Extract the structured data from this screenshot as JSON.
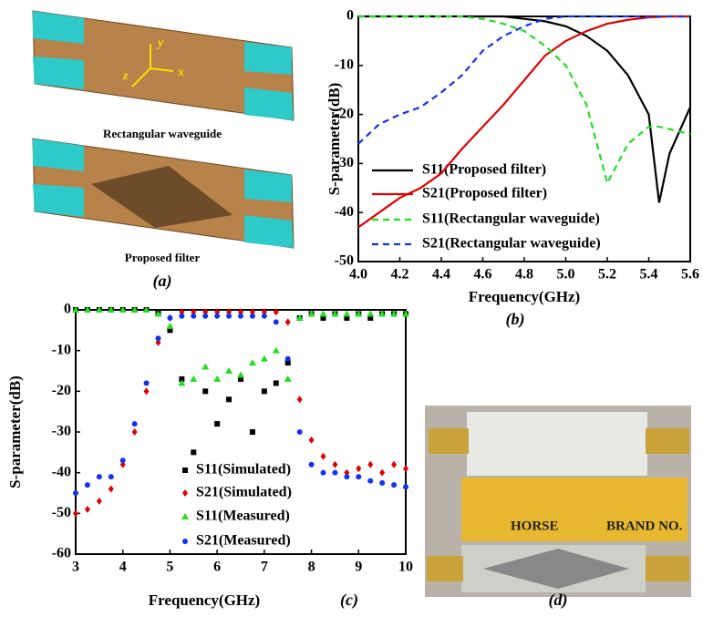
{
  "chart_data": [
    {
      "type": "line",
      "panel_label": "(b)",
      "x_label": "Frequency(GHz)",
      "y_label": "S-parameter(dB)",
      "x": [
        4.0,
        4.1,
        4.2,
        4.3,
        4.4,
        4.5,
        4.6,
        4.7,
        4.8,
        4.9,
        5.0,
        5.1,
        5.2,
        5.3,
        5.4,
        5.45,
        5.5,
        5.6
      ],
      "series": [
        {
          "name": "S11(Proposed filter)",
          "color": "#000000",
          "style": "solid",
          "values": [
            0,
            0,
            0,
            0,
            0,
            0,
            0,
            0,
            -0.5,
            -1,
            -2,
            -4,
            -7,
            -12,
            -20,
            -38,
            -28,
            -18.5
          ]
        },
        {
          "name": "S21(Proposed filter)",
          "color": "#e00000",
          "style": "solid",
          "values": [
            -43,
            -40,
            -37,
            -35,
            -32,
            -27,
            -22.5,
            -18,
            -13,
            -8,
            -5,
            -3,
            -1.5,
            -0.7,
            -0.2,
            -0.1,
            0,
            0
          ]
        },
        {
          "name": "S11(Rectangular waveguide)",
          "color": "#22dd22",
          "style": "dashed",
          "values": [
            0,
            0,
            0,
            0,
            0,
            0,
            -0.5,
            -1.5,
            -3,
            -6,
            -10,
            -18,
            -34,
            -26,
            -22.5,
            -22.5,
            -23,
            -24
          ]
        },
        {
          "name": "S21(Rectangular waveguide)",
          "color": "#1133ee",
          "style": "dashed",
          "values": [
            -26,
            -22,
            -20,
            -18.5,
            -15.5,
            -12,
            -7,
            -4,
            -2,
            -0.5,
            0,
            0,
            0,
            0,
            0,
            0,
            0,
            0
          ]
        }
      ],
      "xlim": [
        4.0,
        5.6
      ],
      "ylim": [
        -50,
        0
      ],
      "xticks": [
        {
          "value": 4.0,
          "label": "4.0"
        },
        4.2,
        4.4,
        4.6,
        4.8,
        {
          "value": 5.0,
          "label": "5.0"
        },
        5.2,
        5.4,
        5.6
      ],
      "yticks": [
        0,
        -10,
        -20,
        -30,
        -40,
        -50
      ],
      "legend": "lower left"
    },
    {
      "type": "scatter",
      "panel_label": "(c)",
      "x_label": "Frequency(GHz)",
      "y_label": "S-parameter(dB)",
      "x": [
        3,
        3.25,
        3.5,
        3.75,
        4,
        4.25,
        4.5,
        4.75,
        5,
        5.25,
        5.5,
        5.75,
        6,
        6.25,
        6.5,
        6.75,
        7,
        7.25,
        7.5,
        7.75,
        8,
        8.25,
        8.5,
        8.75,
        9,
        9.25,
        9.5,
        9.75,
        10
      ],
      "series": [
        {
          "name": "S11(Simulated)",
          "color": "#000000",
          "marker": "square",
          "values": [
            0,
            0,
            0,
            0,
            0,
            0,
            0,
            -0.5,
            -5,
            -17,
            -35,
            -20,
            -28,
            -22,
            -17,
            -30,
            -20,
            -18,
            -13,
            -2,
            -1,
            -2,
            -1,
            -2,
            -1,
            -2,
            -1,
            -1,
            -1
          ]
        },
        {
          "name": "S21(Simulated)",
          "color": "#e00000",
          "marker": "diamond",
          "values": [
            -50,
            -49,
            -47,
            -44,
            -38,
            -30,
            -20,
            -8,
            -2,
            -0.5,
            -0.5,
            -0.5,
            -0.5,
            -0.5,
            -0.5,
            -0.5,
            -0.5,
            -0.5,
            -3,
            -22,
            -32,
            -36,
            -38,
            -40,
            -39,
            -38,
            -40,
            -38,
            -39
          ]
        },
        {
          "name": "S11(Measured)",
          "color": "#22dd22",
          "marker": "triangle",
          "values": [
            0,
            0,
            0,
            0,
            0,
            0,
            0,
            -1,
            -4,
            -18,
            -17,
            -14,
            -17,
            -15,
            -16,
            -13,
            -12,
            -10,
            -17,
            -2,
            -1,
            -1,
            -1,
            -1,
            -1,
            -1,
            -1,
            -1,
            -1
          ]
        },
        {
          "name": "S21(Measured)",
          "color": "#1133ee",
          "marker": "circle",
          "values": [
            -45,
            -43,
            -41,
            -41,
            -37,
            -28,
            -18,
            -7,
            -2,
            -1.5,
            -1.5,
            -1.5,
            -1.5,
            -1.5,
            -1.5,
            -1.5,
            -1.5,
            -3,
            -12,
            -30,
            -38,
            -40,
            -40,
            -41,
            -41,
            -42,
            -42.5,
            -43,
            -43.5
          ]
        }
      ],
      "xlim": [
        3,
        10
      ],
      "ylim": [
        -60,
        0
      ],
      "xticks": [
        3,
        4,
        5,
        6,
        7,
        8,
        9,
        10
      ],
      "yticks": [
        0,
        -10,
        -20,
        -30,
        -40,
        -50,
        -60
      ],
      "legend": "lower left"
    }
  ],
  "panel_a": {
    "axes": [
      "y",
      "z",
      "x"
    ],
    "top_caption": "Rectangular waveguide",
    "bottom_caption": "Proposed filter",
    "label": "(a)"
  },
  "panel_d": {
    "label": "(d)",
    "ruler_text": [
      "HORSE",
      "BRAND NO."
    ]
  }
}
